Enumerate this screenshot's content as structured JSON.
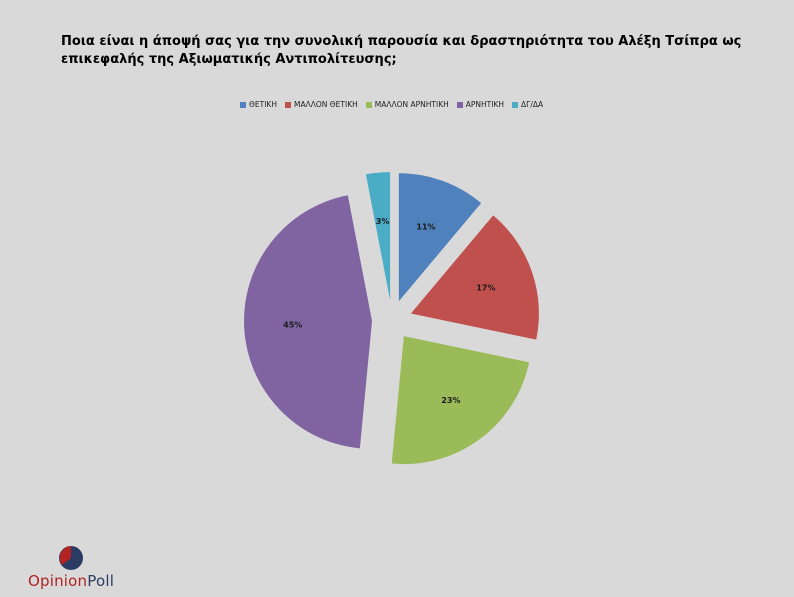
{
  "title": "Ποια είναι η άποψή σας για την συνολική παρουσία και δραστηριότητα του Αλέξη Τσίπρα ως επικεφαλής της Αξιωματικής Αντιπολίτευσης;",
  "logo": {
    "part1": "Opinion",
    "part2": "Poll",
    "colors": {
      "red": "#b22222",
      "navy": "#2a3c63"
    }
  },
  "chart_data": {
    "type": "pie",
    "title": "Ποια είναι η άποψή σας για την συνολική παρουσία και δραστηριότητα του Αλέξη Τσίπρα ως επικεφαλής της Αξιωματικής Αντιπολίτευσης;",
    "legend_position": "top",
    "exploded": true,
    "categories": [
      "ΘΕΤΙΚΗ",
      "ΜΑΛΛΟΝ ΘΕΤΙΚΗ",
      "ΜΑΛΛΟΝ ΑΡΝΗΤΙΚΗ",
      "ΑΡΝΗΤΙΚΗ",
      "ΔΓ/ΔΑ"
    ],
    "values": [
      11,
      17,
      23,
      45,
      3
    ],
    "labels": [
      "11%",
      "17%",
      "23%",
      "45%",
      "3%"
    ],
    "colors": [
      "#4f81bd",
      "#c0504d",
      "#9bbb59",
      "#8064a2",
      "#4bacc6"
    ]
  }
}
